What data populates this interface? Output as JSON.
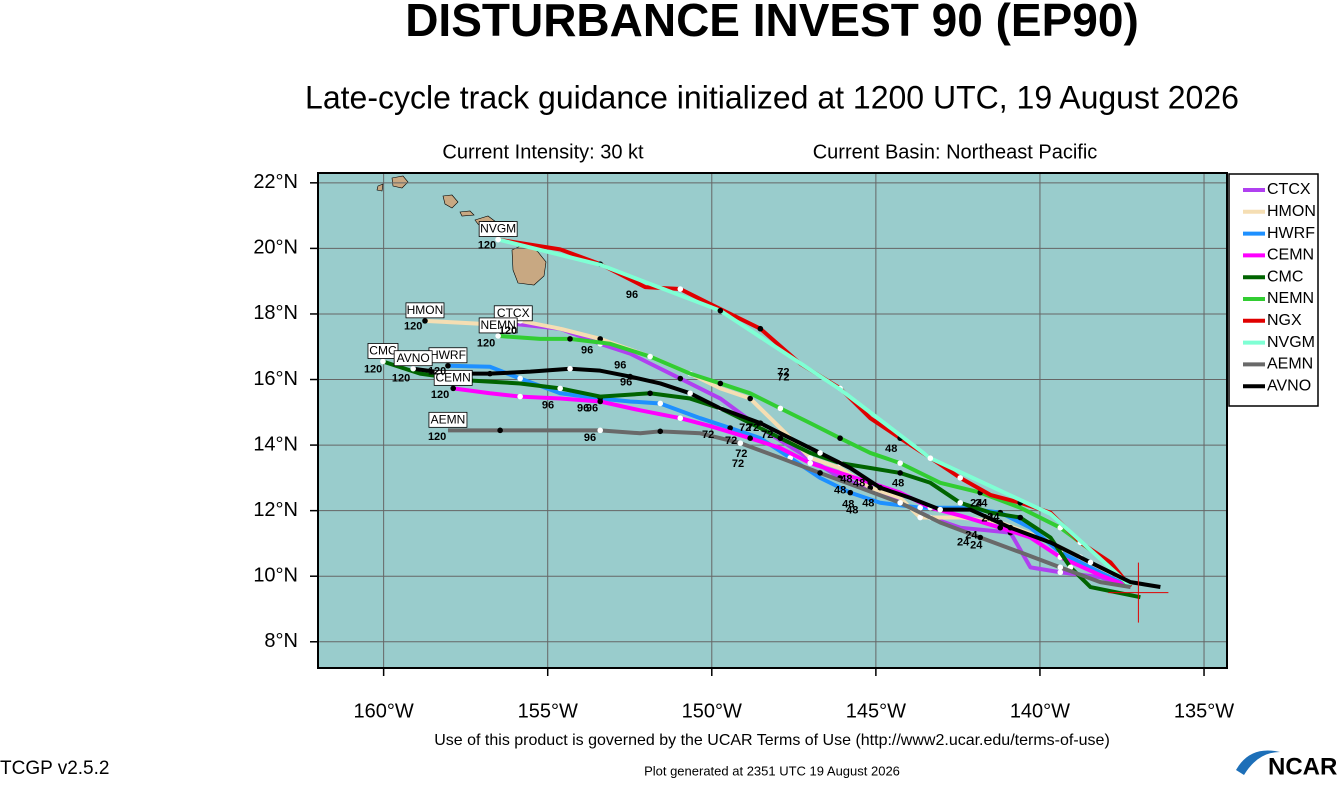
{
  "header": {
    "title": "DISTURBANCE INVEST 90 (EP90)",
    "subtitle": "Late-cycle track guidance initialized at 1200 UTC, 19 August 2026",
    "intensity": "Current Intensity: 30 kt",
    "basin": "Current Basin: Northeast Pacific"
  },
  "chart_data": {
    "type": "line",
    "xlim": [
      -162,
      -134.3
    ],
    "ylim": [
      7.2,
      22.3
    ],
    "xticks": [
      {
        "value": -160,
        "label": "160°W"
      },
      {
        "value": -155,
        "label": "155°W"
      },
      {
        "value": -150,
        "label": "150°W"
      },
      {
        "value": -145,
        "label": "145°W"
      },
      {
        "value": -140,
        "label": "140°W"
      },
      {
        "value": -135,
        "label": "135°W"
      }
    ],
    "yticks": [
      {
        "value": 8,
        "label": "8°N"
      },
      {
        "value": 10,
        "label": "10°N"
      },
      {
        "value": 12,
        "label": "12°N"
      },
      {
        "value": 14,
        "label": "14°N"
      },
      {
        "value": 16,
        "label": "16°N"
      },
      {
        "value": 18,
        "label": "18°N"
      },
      {
        "value": 20,
        "label": "20°N"
      },
      {
        "value": 22,
        "label": "22°N"
      }
    ],
    "grid": true,
    "legend": "right",
    "current_position": {
      "x": -137.0,
      "y": 9.5
    },
    "series": [
      {
        "name": "CTCX",
        "color": "#b040f0",
        "x": [
          -137.24,
          -138.16,
          -139.38,
          -140.29,
          -140.9,
          -142.43,
          -143.34,
          -144.87,
          -146.09,
          -147.3,
          -148.52,
          -149.74,
          -150.96,
          -152.49,
          -153.4,
          -154.62,
          -156.05
        ],
        "values": [
          9.67,
          9.97,
          10.12,
          10.27,
          11.33,
          11.48,
          11.79,
          12.55,
          13.0,
          13.76,
          14.52,
          15.42,
          16.03,
          16.79,
          17.09,
          17.55,
          17.7
        ]
      },
      {
        "name": "HMON",
        "color": "#f5deb3",
        "x": [
          -137.24,
          -137.85,
          -138.77,
          -139.99,
          -141.21,
          -142.43,
          -143.65,
          -144.26,
          -145.17,
          -146.09,
          -147.0,
          -147.91,
          -148.83,
          -149.74,
          -150.66,
          -151.88,
          -153.4,
          -154.62,
          -155.84,
          -157.06,
          -158.74
        ],
        "values": [
          9.67,
          9.97,
          10.58,
          11.18,
          11.64,
          11.79,
          11.79,
          12.39,
          12.7,
          13.3,
          13.61,
          14.52,
          15.42,
          15.73,
          16.18,
          16.7,
          17.24,
          17.55,
          17.79,
          17.7,
          17.79
        ]
      },
      {
        "name": "HWRF",
        "color": "#1e90ff",
        "x": [
          -137.24,
          -138.16,
          -139.38,
          -140.29,
          -141.21,
          -142.43,
          -143.65,
          -144.87,
          -145.78,
          -146.7,
          -147.61,
          -148.52,
          -149.44,
          -150.35,
          -151.57,
          -152.49,
          -153.4,
          -154.62,
          -155.84,
          -156.76,
          -158.04
        ],
        "values": [
          9.67,
          10.12,
          10.73,
          11.48,
          11.94,
          12.09,
          12.09,
          12.24,
          12.55,
          13.0,
          13.61,
          14.21,
          14.52,
          14.82,
          15.27,
          15.33,
          15.42,
          15.58,
          16.03,
          16.39,
          16.42
        ]
      },
      {
        "name": "CEMN",
        "color": "#ff00ff",
        "x": [
          -137.24,
          -138.16,
          -139.38,
          -140.29,
          -141.21,
          -142.43,
          -143.34,
          -144.26,
          -145.17,
          -146.09,
          -147.0,
          -147.91,
          -148.83,
          -150.05,
          -150.96,
          -152.18,
          -153.4,
          -154.62,
          -155.84,
          -156.76,
          -157.88
        ],
        "values": [
          9.67,
          10.03,
          10.58,
          11.18,
          11.48,
          11.85,
          12.09,
          12.55,
          12.85,
          13.15,
          13.45,
          13.91,
          14.21,
          14.58,
          14.82,
          15.06,
          15.33,
          15.42,
          15.48,
          15.58,
          15.73
        ]
      },
      {
        "name": "CMC",
        "color": "#006400",
        "x": [
          -136.94,
          -138.46,
          -139.07,
          -139.68,
          -140.6,
          -141.51,
          -142.43,
          -143.34,
          -144.26,
          -145.17,
          -146.09,
          -147.0,
          -147.91,
          -148.83,
          -149.74,
          -150.66,
          -151.88,
          -153.4,
          -154.62,
          -155.84,
          -157.37,
          -158.89,
          -160.02
        ],
        "values": [
          9.36,
          9.67,
          10.27,
          11.18,
          11.79,
          11.94,
          12.24,
          12.85,
          13.15,
          13.3,
          13.45,
          13.76,
          14.21,
          14.67,
          15.12,
          15.42,
          15.58,
          15.48,
          15.73,
          15.88,
          15.97,
          16.18,
          16.55
        ]
      },
      {
        "name": "NEMN",
        "color": "#32cd32",
        "x": [
          -137.24,
          -138.16,
          -139.38,
          -140.6,
          -141.82,
          -143.04,
          -144.26,
          -145.17,
          -146.09,
          -147.0,
          -147.91,
          -148.83,
          -149.74,
          -150.66,
          -151.88,
          -153.1,
          -154.32,
          -155.23,
          -156.51
        ],
        "values": [
          9.67,
          10.58,
          11.48,
          12.09,
          12.55,
          12.85,
          13.45,
          13.76,
          14.21,
          14.67,
          15.12,
          15.58,
          15.88,
          16.18,
          16.7,
          17.09,
          17.24,
          17.24,
          17.33
        ]
      },
      {
        "name": "NGX",
        "color": "#e00000",
        "x": [
          -137.24,
          -137.85,
          -138.77,
          -139.68,
          -140.6,
          -141.51,
          -142.43,
          -143.34,
          -144.26,
          -145.17,
          -146.09,
          -147.3,
          -148.52,
          -149.74,
          -150.96,
          -152.03,
          -153.4,
          -154.62,
          -156.51
        ],
        "values": [
          9.67,
          10.42,
          11.03,
          11.94,
          12.24,
          12.48,
          13.0,
          13.61,
          14.21,
          14.82,
          15.73,
          16.48,
          17.55,
          18.15,
          18.76,
          18.82,
          19.52,
          19.97,
          20.27
        ]
      },
      {
        "name": "NVGM",
        "color": "#7fffd4",
        "x": [
          -137.24,
          -139.68,
          -143.34,
          -146.09,
          -149.74,
          -153.4,
          -156.51
        ],
        "values": [
          9.7,
          11.9,
          13.6,
          15.7,
          18.1,
          19.5,
          20.27
        ]
      },
      {
        "name": "AEMN",
        "color": "#696969",
        "x": [
          -137.24,
          -138.16,
          -139.38,
          -140.6,
          -141.82,
          -143.04,
          -144.26,
          -145.48,
          -146.7,
          -147.91,
          -149.13,
          -150.35,
          -151.57,
          -152.18,
          -153.4,
          -154.93,
          -156.45,
          -158.04
        ],
        "values": [
          9.67,
          9.82,
          10.27,
          10.73,
          11.18,
          11.64,
          12.24,
          12.7,
          13.15,
          13.61,
          14.06,
          14.36,
          14.42,
          14.36,
          14.45,
          14.45,
          14.45,
          14.45
        ]
      },
      {
        "name": "AVNO",
        "color": "#000000",
        "x": [
          -136.33,
          -137.24,
          -138.46,
          -139.68,
          -140.9,
          -142.12,
          -143.04,
          -143.95,
          -144.87,
          -145.78,
          -146.7,
          -147.61,
          -148.52,
          -149.74,
          -150.66,
          -151.57,
          -152.49,
          -153.4,
          -154.32,
          -155.53,
          -156.76,
          -157.98,
          -159.1
        ],
        "values": [
          9.67,
          9.82,
          10.42,
          11.03,
          11.48,
          12.03,
          12.03,
          12.39,
          12.7,
          13.3,
          13.76,
          14.21,
          14.67,
          15.12,
          15.58,
          15.88,
          16.09,
          16.27,
          16.33,
          16.24,
          16.18,
          16.18,
          16.33
        ]
      }
    ],
    "annotations": [
      {
        "text": "120",
        "x": -156.85,
        "y": 20.09
      },
      {
        "text": "120",
        "x": -159.1,
        "y": 17.61
      },
      {
        "text": "120",
        "x": -156.88,
        "y": 17.09
      },
      {
        "text": "120",
        "x": -156.21,
        "y": 17.48
      },
      {
        "text": "120",
        "x": -158.37,
        "y": 16.24
      },
      {
        "text": "120",
        "x": -160.32,
        "y": 16.3
      },
      {
        "text": "120",
        "x": -159.47,
        "y": 16.03
      },
      {
        "text": "120",
        "x": -158.28,
        "y": 15.52
      },
      {
        "text": "120",
        "x": -158.37,
        "y": 14.24
      },
      {
        "text": "96",
        "x": -152.43,
        "y": 18.58
      },
      {
        "text": "96",
        "x": -153.8,
        "y": 16.88
      },
      {
        "text": "96",
        "x": -152.79,
        "y": 16.42
      },
      {
        "text": "96",
        "x": -152.61,
        "y": 15.91
      },
      {
        "text": "96",
        "x": -154.99,
        "y": 15.21
      },
      {
        "text": "96",
        "x": -153.92,
        "y": 15.12
      },
      {
        "text": "96",
        "x": -153.65,
        "y": 15.12
      },
      {
        "text": "96",
        "x": -153.71,
        "y": 14.21
      },
      {
        "text": "72",
        "x": -147.82,
        "y": 16.21
      },
      {
        "text": "72",
        "x": -147.82,
        "y": 16.06
      },
      {
        "text": "72",
        "x": -150.11,
        "y": 14.3
      },
      {
        "text": "72",
        "x": -149.41,
        "y": 14.12
      },
      {
        "text": "72",
        "x": -149.1,
        "y": 13.73
      },
      {
        "text": "72",
        "x": -149.2,
        "y": 13.42
      },
      {
        "text": "72",
        "x": -148.31,
        "y": 14.3
      },
      {
        "text": "72",
        "x": -148.98,
        "y": 14.52
      },
      {
        "text": "72",
        "x": -148.74,
        "y": 14.52
      },
      {
        "text": "48",
        "x": -144.53,
        "y": 13.88
      },
      {
        "text": "48",
        "x": -144.32,
        "y": 12.82
      },
      {
        "text": "48",
        "x": -145.9,
        "y": 12.94
      },
      {
        "text": "48",
        "x": -145.51,
        "y": 12.82
      },
      {
        "text": "48",
        "x": -146.09,
        "y": 12.61
      },
      {
        "text": "48",
        "x": -145.84,
        "y": 12.18
      },
      {
        "text": "48",
        "x": -145.72,
        "y": 12.0
      },
      {
        "text": "48",
        "x": -145.23,
        "y": 12.21
      },
      {
        "text": "24",
        "x": -141.94,
        "y": 12.21
      },
      {
        "text": "24",
        "x": -141.79,
        "y": 12.21
      },
      {
        "text": "24",
        "x": -141.6,
        "y": 11.76
      },
      {
        "text": "24",
        "x": -142.09,
        "y": 11.24
      },
      {
        "text": "24",
        "x": -142.34,
        "y": 11.03
      },
      {
        "text": "24",
        "x": -141.94,
        "y": 10.94
      },
      {
        "text": "24",
        "x": -141.42,
        "y": 11.79
      }
    ]
  },
  "footer": {
    "terms": "Use of this product is governed by the UCAR Terms of Use (http://www2.ucar.edu/terms-of-use)",
    "version": "TCGP v2.5.2",
    "generated": "Plot generated at 2351 UTC   19 August 2026",
    "logo": "NCAR"
  }
}
